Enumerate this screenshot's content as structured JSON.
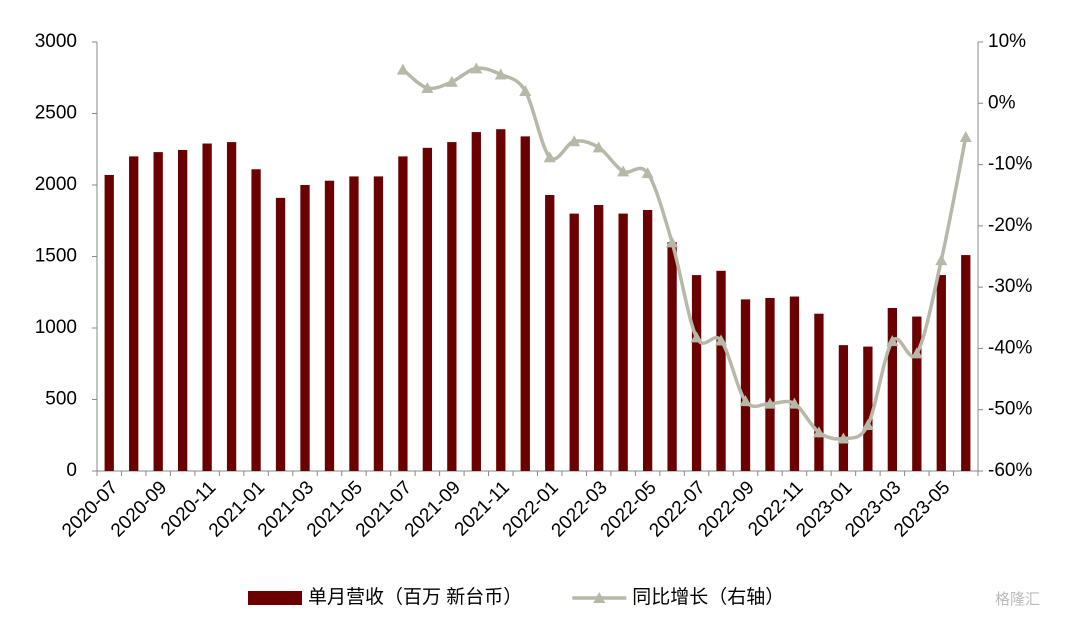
{
  "chart_data": {
    "type": "bar-line",
    "categories": [
      "2020-07",
      null,
      "2020-09",
      null,
      "2020-11",
      null,
      "2021-01",
      null,
      "2021-03",
      null,
      "2021-05",
      null,
      "2021-07",
      null,
      "2021-09",
      null,
      "2021-11",
      null,
      "2022-01",
      null,
      "2022-03",
      null,
      "2022-05",
      null,
      "2022-07",
      null,
      "2022-09",
      null,
      "2022-11",
      null,
      "2023-01",
      null,
      "2023-03",
      null,
      "2023-05",
      null
    ],
    "series": [
      {
        "name": "单月营收（百万 新台币）",
        "color": "#6b0000",
        "type": "bar",
        "values": [
          2070,
          2200,
          2230,
          2245,
          2290,
          2300,
          2110,
          1910,
          2000,
          2030,
          2060,
          2060,
          2200,
          2260,
          2300,
          2370,
          2390,
          2340,
          1930,
          1800,
          1860,
          1800,
          1825,
          1600,
          1370,
          1400,
          1200,
          1210,
          1220,
          1100,
          880,
          870,
          1140,
          1080,
          1370,
          1510
        ]
      },
      {
        "name": "同比增长（右轴）",
        "color": "#b8b8a8",
        "type": "line",
        "axis": "y2",
        "values": [
          null,
          null,
          null,
          null,
          null,
          null,
          null,
          null,
          null,
          null,
          null,
          null,
          5.5,
          2.5,
          3.5,
          5.7,
          4.7,
          2.0,
          -8.8,
          -6.2,
          -7.2,
          -11.1,
          -11.4,
          -22.7,
          -38.2,
          -38.7,
          -48.6,
          -49,
          -49,
          -53.7,
          -54.7,
          -52.5,
          -38.8,
          -40.8,
          -25.6,
          -5.5
        ]
      }
    ],
    "ylim": [
      0,
      3000
    ],
    "yticks": [
      0,
      500,
      1000,
      1500,
      2000,
      2500,
      3000
    ],
    "y2lim": [
      -60,
      10
    ],
    "y2ticks": [
      {
        "value": -60,
        "label": "-60%"
      },
      {
        "value": -50,
        "label": "-50%"
      },
      {
        "value": -40,
        "label": "-40%"
      },
      {
        "value": -30,
        "label": "-30%"
      },
      {
        "value": -20,
        "label": "-20%"
      },
      {
        "value": -10,
        "label": "-10%"
      },
      {
        "value": 0,
        "label": "0%"
      },
      {
        "value": 10,
        "label": "10%"
      }
    ],
    "legend": "bottom",
    "watermark": "格隆汇"
  }
}
